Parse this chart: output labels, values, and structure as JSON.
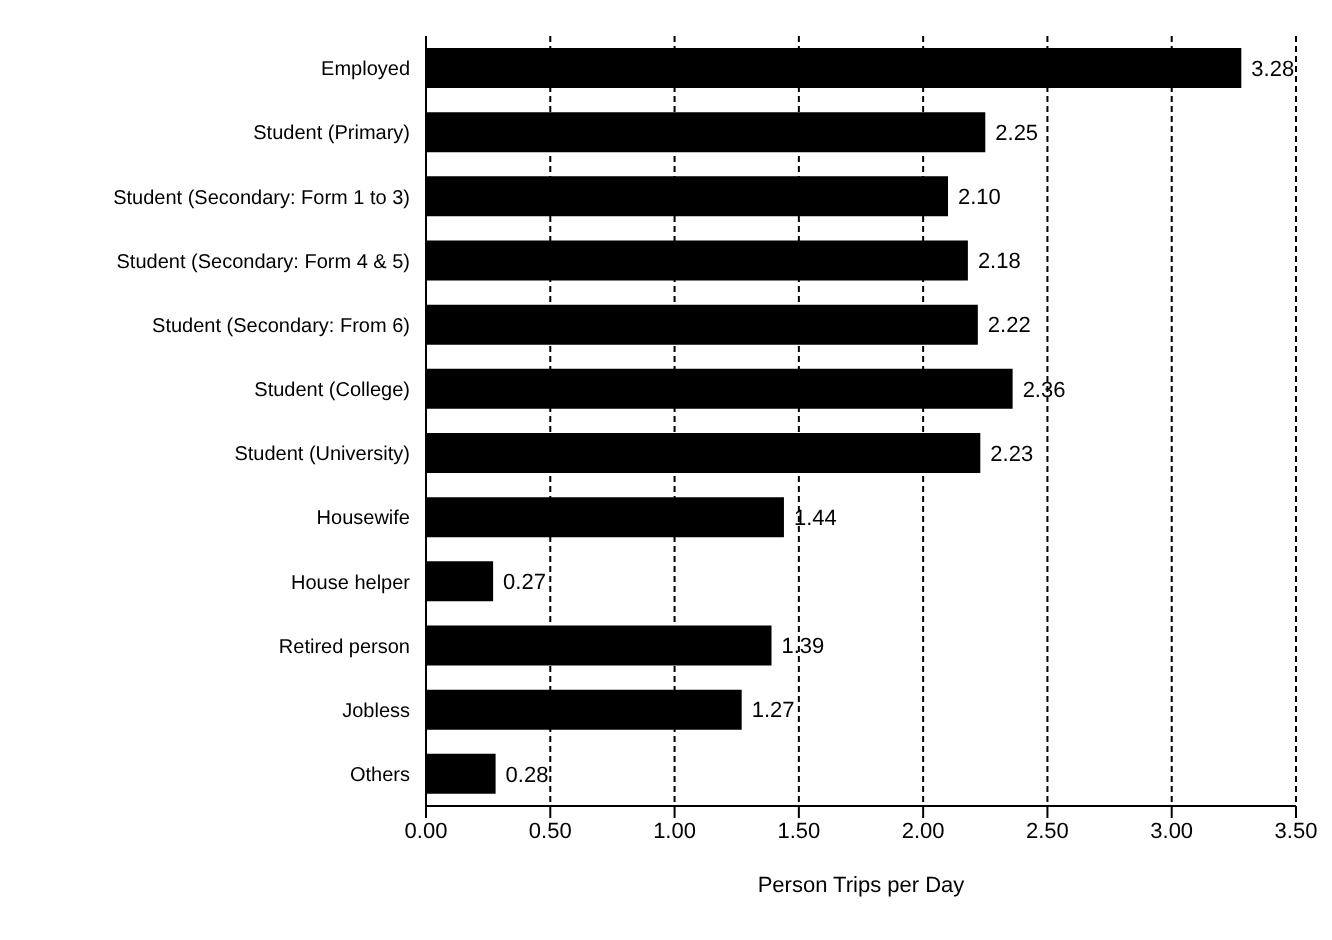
{
  "chart_data": {
    "type": "bar",
    "orientation": "horizontal",
    "xlabel": "Person Trips per Day",
    "categories": [
      "Employed",
      "Student (Primary)",
      "Student (Secondary: Form 1 to 3)",
      "Student (Secondary: Form 4 & 5)",
      "Student (Secondary: From 6)",
      "Student (College)",
      "Student (University)",
      "Housewife",
      "House helper",
      "Retired person",
      "Jobless",
      "Others"
    ],
    "values": [
      3.28,
      2.25,
      2.1,
      2.18,
      2.22,
      2.36,
      2.23,
      1.44,
      0.27,
      1.39,
      1.27,
      0.28
    ],
    "value_labels": [
      "3.28",
      "2.25",
      "2.10",
      "2.18",
      "2.22",
      "2.36",
      "2.23",
      "1.44",
      "0.27",
      "1.39",
      "1.27",
      "0.28"
    ],
    "color": "#000000",
    "xlim": [
      0,
      3.5
    ],
    "xticks": [
      {
        "value": 0,
        "label": "0.00"
      },
      {
        "value": 0.5,
        "label": "0.50"
      },
      {
        "value": 1,
        "label": "1.00"
      },
      {
        "value": 1.5,
        "label": "1.50"
      },
      {
        "value": 2,
        "label": "2.00"
      },
      {
        "value": 2.5,
        "label": "2.50"
      },
      {
        "value": 3,
        "label": "3.00"
      },
      {
        "value": 3.5,
        "label": "3.50"
      }
    ],
    "grid": "x"
  }
}
